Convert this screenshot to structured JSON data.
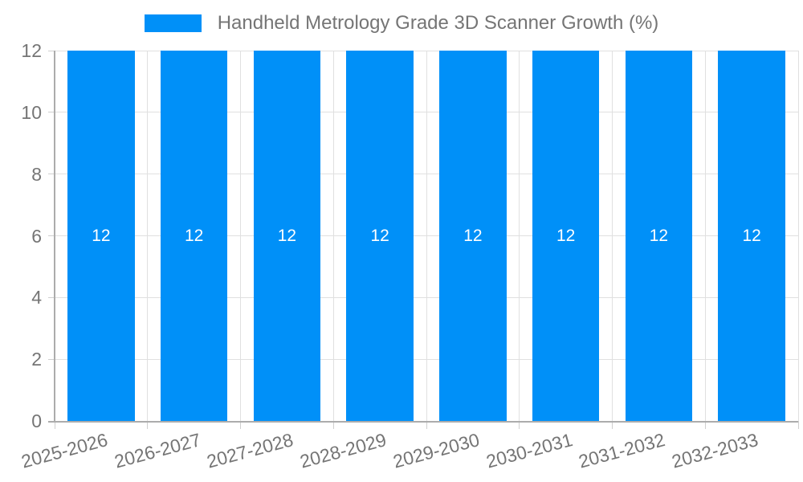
{
  "chart_data": {
    "type": "bar",
    "title": "Handheld Metrology Grade 3D Scanner Growth (%)",
    "categories": [
      "2025-2026",
      "2026-2027",
      "2027-2028",
      "2028-2029",
      "2029-2030",
      "2030-2031",
      "2031-2032",
      "2032-2033"
    ],
    "values": [
      12,
      12,
      12,
      12,
      12,
      12,
      12,
      12
    ],
    "xlabel": "",
    "ylabel": "",
    "ylim": [
      0,
      12
    ],
    "yticks": [
      0,
      2,
      4,
      6,
      8,
      10,
      12
    ],
    "grid": true,
    "legend_position": "top",
    "show_value_labels": true,
    "x_label_rotation_deg": -15
  },
  "colors": {
    "bar": "#0090F8",
    "value_label": "#FFFFFF",
    "grid": "#E0E0E0",
    "tick": "#CFCFCF",
    "axis": "#ACACAC",
    "text": "#757575",
    "background": "#FFFFFF"
  }
}
